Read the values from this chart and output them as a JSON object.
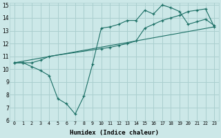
{
  "xlabel": "Humidex (Indice chaleur)",
  "xlim": [
    -0.5,
    23.5
  ],
  "ylim": [
    6,
    15.2
  ],
  "xticks": [
    0,
    1,
    2,
    3,
    4,
    5,
    6,
    7,
    8,
    9,
    10,
    11,
    12,
    13,
    14,
    15,
    16,
    17,
    18,
    19,
    20,
    21,
    22,
    23
  ],
  "yticks": [
    6,
    7,
    8,
    9,
    10,
    11,
    12,
    13,
    14,
    15
  ],
  "bg_color": "#cce8e8",
  "grid_color": "#aacfcf",
  "line_color": "#1a6e64",
  "line1_x": [
    0,
    1,
    2,
    3,
    4,
    5,
    6,
    7,
    8,
    9,
    10,
    11,
    12,
    13,
    14,
    15,
    16,
    17,
    18,
    19,
    20,
    21,
    22,
    23
  ],
  "line1_y": [
    10.5,
    10.5,
    10.2,
    9.9,
    9.5,
    7.7,
    7.3,
    6.5,
    7.9,
    10.4,
    13.2,
    13.3,
    13.5,
    13.8,
    13.8,
    14.6,
    14.3,
    15.0,
    14.8,
    14.5,
    13.5,
    13.7,
    13.9,
    13.4
  ],
  "line2_x": [
    0,
    1,
    2,
    3,
    4,
    10,
    11,
    12,
    13,
    14,
    15,
    16,
    17,
    18,
    19,
    20,
    21,
    22,
    23
  ],
  "line2_y": [
    10.5,
    10.5,
    10.5,
    10.7,
    11.0,
    11.6,
    11.7,
    11.85,
    12.0,
    12.2,
    13.2,
    13.5,
    13.8,
    14.0,
    14.2,
    14.5,
    14.6,
    14.7,
    13.3
  ],
  "line3_x": [
    0,
    23
  ],
  "line3_y": [
    10.5,
    13.3
  ],
  "marker_x": [
    0,
    1,
    2,
    4,
    10,
    11,
    12,
    13,
    14,
    15,
    16,
    17,
    18,
    19,
    20,
    21,
    22,
    23
  ],
  "marker_y": [
    10.5,
    10.5,
    10.5,
    11.0,
    11.6,
    11.7,
    11.85,
    12.0,
    12.2,
    13.2,
    13.5,
    13.8,
    14.0,
    14.2,
    14.5,
    14.6,
    14.7,
    13.3
  ]
}
